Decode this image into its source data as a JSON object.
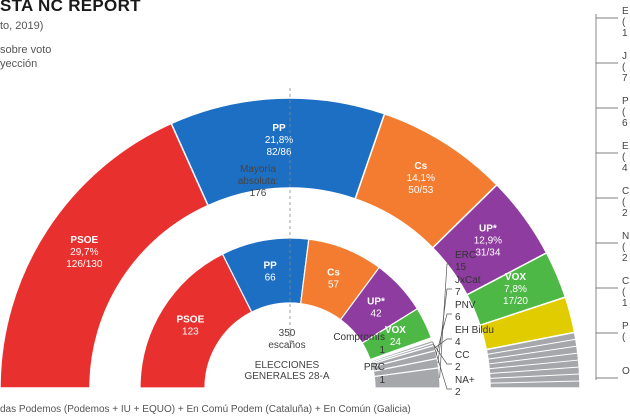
{
  "header": {
    "title": "STA NC REPORT",
    "date_note": "to, 2019)",
    "legend_line1": "sobre voto",
    "legend_line2": "yección"
  },
  "footnote": "das Podemos (Podemos + IU + EQUO) + En Comú Podem (Cataluña) + En Común (Galicia)",
  "majority_label": [
    "Mayoría",
    "absoluta:",
    "176"
  ],
  "total_seats": [
    "350",
    "escaños"
  ],
  "election_label": [
    "ELECCIONES",
    "GENERALES 28-A"
  ],
  "colors": {
    "PSOE": "#e8312f",
    "PP": "#1d6fc4",
    "Cs": "#f47c30",
    "UP": "#8e3c9f",
    "VOX": "#4eb847",
    "CR": "#e1cc00",
    "OTHERS": "#a5a7ab"
  },
  "chart_data": [
    {
      "type": "semicircle",
      "name": "Encuesta NC Report",
      "series": [
        {
          "party": "PSOE",
          "label": "PSOE",
          "pct": "29,7%",
          "seats": "126/130",
          "value": 128
        },
        {
          "party": "PP",
          "label": "PP",
          "pct": "21,8%",
          "seats": "82/86",
          "value": 84
        },
        {
          "party": "Cs",
          "label": "Cs",
          "pct": "14,1%",
          "seats": "50/53",
          "value": 51.5
        },
        {
          "party": "UP",
          "label": "UP*",
          "pct": "12,9%",
          "seats": "31/34",
          "value": 32.5
        },
        {
          "party": "VOX",
          "label": "VOX",
          "pct": "7,8%",
          "seats": "17/20",
          "value": 18.5
        },
        {
          "party": "CR",
          "label": "",
          "pct": "",
          "seats": "",
          "value": 14
        },
        {
          "party": "OTHERS",
          "label": "",
          "pct": "",
          "seats": "",
          "value": 21.5
        }
      ],
      "right_labels": [
        {
          "line1": "E",
          "line2": "(",
          "line3": "1"
        },
        {
          "line1": "J",
          "line2": "(",
          "line3": "7"
        },
        {
          "line1": "P",
          "line2": "(",
          "line3": "6"
        },
        {
          "line1": "E",
          "line2": "(",
          "line3": "4"
        },
        {
          "line1": "C",
          "line2": "(",
          "line3": "2"
        },
        {
          "line1": "N",
          "line2": "(",
          "line3": "2"
        },
        {
          "line1": "C",
          "line2": "(",
          "line3": "1"
        },
        {
          "line1": "P",
          "line2": "(",
          "line3": ""
        },
        {
          "line1": "O",
          "line2": "",
          "line3": ""
        }
      ]
    },
    {
      "type": "semicircle",
      "name": "Elecciones generales 28-A",
      "series": [
        {
          "party": "PSOE",
          "label": "PSOE",
          "seats": "123",
          "value": 123
        },
        {
          "party": "PP",
          "label": "PP",
          "seats": "66",
          "value": 66
        },
        {
          "party": "Cs",
          "label": "Cs",
          "seats": "57",
          "value": 57
        },
        {
          "party": "UP",
          "label": "UP*",
          "seats": "42",
          "value": 42
        },
        {
          "party": "VOX",
          "label": "VOX",
          "seats": "24",
          "value": 24
        },
        {
          "party": "Compromis",
          "label": "Compromís",
          "seats": "1",
          "value": 1
        },
        {
          "party": "PRC",
          "label": "PRC",
          "seats": "1",
          "value": 1
        },
        {
          "party": "NA+",
          "label": "NA+",
          "seats": "2",
          "value": 2
        },
        {
          "party": "CC",
          "label": "CC",
          "seats": "2",
          "value": 2
        },
        {
          "party": "EH Bildu",
          "label": "EH Bildu",
          "seats": "4",
          "value": 4
        },
        {
          "party": "PNV",
          "label": "PNV",
          "seats": "6",
          "value": 6
        },
        {
          "party": "JxCat",
          "label": "JxCat",
          "seats": "7",
          "value": 7
        },
        {
          "party": "ERC",
          "label": "ERC",
          "seats": "15",
          "value": 15
        }
      ]
    }
  ]
}
